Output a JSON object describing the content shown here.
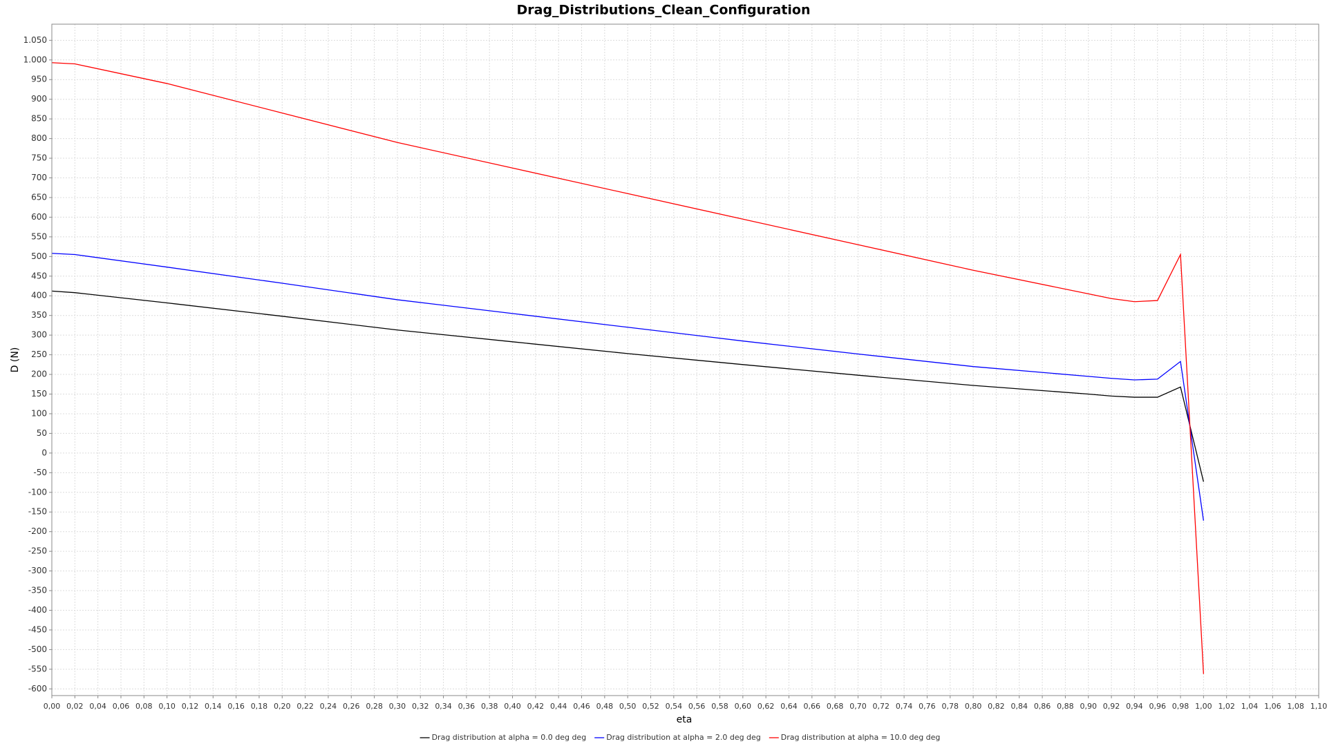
{
  "chart_data": {
    "type": "line",
    "title": "Drag_Distributions_Clean_Configuration",
    "x_label": "eta",
    "y_label": "D (N)",
    "x": [
      0,
      0.02,
      0.1,
      0.2,
      0.3,
      0.4,
      0.5,
      0.6,
      0.7,
      0.8,
      0.9,
      0.92,
      0.94,
      0.96,
      0.98,
      1.0
    ],
    "series": [
      {
        "name": "Drag distribution at alpha = 0.0 deg deg",
        "color": "#000000",
        "values": [
          412,
          408,
          382,
          348,
          313,
          283,
          253,
          225,
          198,
          172,
          150,
          145,
          142,
          142,
          168,
          -73
        ]
      },
      {
        "name": "Drag distribution at alpha = 2.0 deg deg",
        "color": "#0000ff",
        "values": [
          508,
          505,
          473,
          432,
          390,
          355,
          320,
          285,
          252,
          220,
          195,
          190,
          186,
          188,
          233,
          -172
        ]
      },
      {
        "name": "Drag distribution at alpha = 10.0 deg deg",
        "color": "#ff0000",
        "values": [
          993,
          990,
          940,
          865,
          790,
          725,
          660,
          595,
          530,
          465,
          405,
          393,
          385,
          388,
          505,
          -562
        ]
      }
    ],
    "xlim": [
      0,
      1.1
    ],
    "ylim": [
      -617,
      1091
    ],
    "grid": true,
    "legend": "bottom",
    "xticks": [
      {
        "value": 0,
        "label": "0,00"
      },
      {
        "value": 0.02,
        "label": "0,02"
      },
      {
        "value": 0.04,
        "label": "0,04"
      },
      {
        "value": 0.06,
        "label": "0,06"
      },
      {
        "value": 0.08,
        "label": "0,08"
      },
      {
        "value": 0.1,
        "label": "0,10"
      },
      {
        "value": 0.12,
        "label": "0,12"
      },
      {
        "value": 0.14,
        "label": "0,14"
      },
      {
        "value": 0.16,
        "label": "0,16"
      },
      {
        "value": 0.18,
        "label": "0,18"
      },
      {
        "value": 0.2,
        "label": "0,20"
      },
      {
        "value": 0.22,
        "label": "0,22"
      },
      {
        "value": 0.24,
        "label": "0,24"
      },
      {
        "value": 0.26,
        "label": "0,26"
      },
      {
        "value": 0.28,
        "label": "0,28"
      },
      {
        "value": 0.3,
        "label": "0,30"
      },
      {
        "value": 0.32,
        "label": "0,32"
      },
      {
        "value": 0.34,
        "label": "0,34"
      },
      {
        "value": 0.36,
        "label": "0,36"
      },
      {
        "value": 0.38,
        "label": "0,38"
      },
      {
        "value": 0.4,
        "label": "0,40"
      },
      {
        "value": 0.42,
        "label": "0,42"
      },
      {
        "value": 0.44,
        "label": "0,44"
      },
      {
        "value": 0.46,
        "label": "0,46"
      },
      {
        "value": 0.48,
        "label": "0,48"
      },
      {
        "value": 0.5,
        "label": "0,50"
      },
      {
        "value": 0.52,
        "label": "0,52"
      },
      {
        "value": 0.54,
        "label": "0,54"
      },
      {
        "value": 0.56,
        "label": "0,56"
      },
      {
        "value": 0.58,
        "label": "0,58"
      },
      {
        "value": 0.6,
        "label": "0,60"
      },
      {
        "value": 0.62,
        "label": "0,62"
      },
      {
        "value": 0.64,
        "label": "0,64"
      },
      {
        "value": 0.66,
        "label": "0,66"
      },
      {
        "value": 0.68,
        "label": "0,68"
      },
      {
        "value": 0.7,
        "label": "0,70"
      },
      {
        "value": 0.72,
        "label": "0,72"
      },
      {
        "value": 0.74,
        "label": "0,74"
      },
      {
        "value": 0.76,
        "label": "0,76"
      },
      {
        "value": 0.78,
        "label": "0,78"
      },
      {
        "value": 0.8,
        "label": "0,80"
      },
      {
        "value": 0.82,
        "label": "0,82"
      },
      {
        "value": 0.84,
        "label": "0,84"
      },
      {
        "value": 0.86,
        "label": "0,86"
      },
      {
        "value": 0.88,
        "label": "0,88"
      },
      {
        "value": 0.9,
        "label": "0,90"
      },
      {
        "value": 0.92,
        "label": "0,92"
      },
      {
        "value": 0.94,
        "label": "0,94"
      },
      {
        "value": 0.96,
        "label": "0,96"
      },
      {
        "value": 0.98,
        "label": "0,98"
      },
      {
        "value": 1.0,
        "label": "1,00"
      },
      {
        "value": 1.02,
        "label": "1,02"
      },
      {
        "value": 1.04,
        "label": "1,04"
      },
      {
        "value": 1.06,
        "label": "1,06"
      },
      {
        "value": 1.08,
        "label": "1,08"
      },
      {
        "value": 1.1,
        "label": "1,10"
      }
    ],
    "yticks": [
      -600,
      -550,
      -500,
      -450,
      -400,
      -350,
      -300,
      -250,
      -200,
      -150,
      -100,
      -50,
      0,
      50,
      100,
      150,
      200,
      250,
      300,
      350,
      400,
      450,
      500,
      550,
      600,
      650,
      700,
      750,
      800,
      850,
      900,
      950,
      {
        "value": 1000,
        "label": "1.000"
      },
      {
        "value": 1050,
        "label": "1.050"
      }
    ]
  }
}
